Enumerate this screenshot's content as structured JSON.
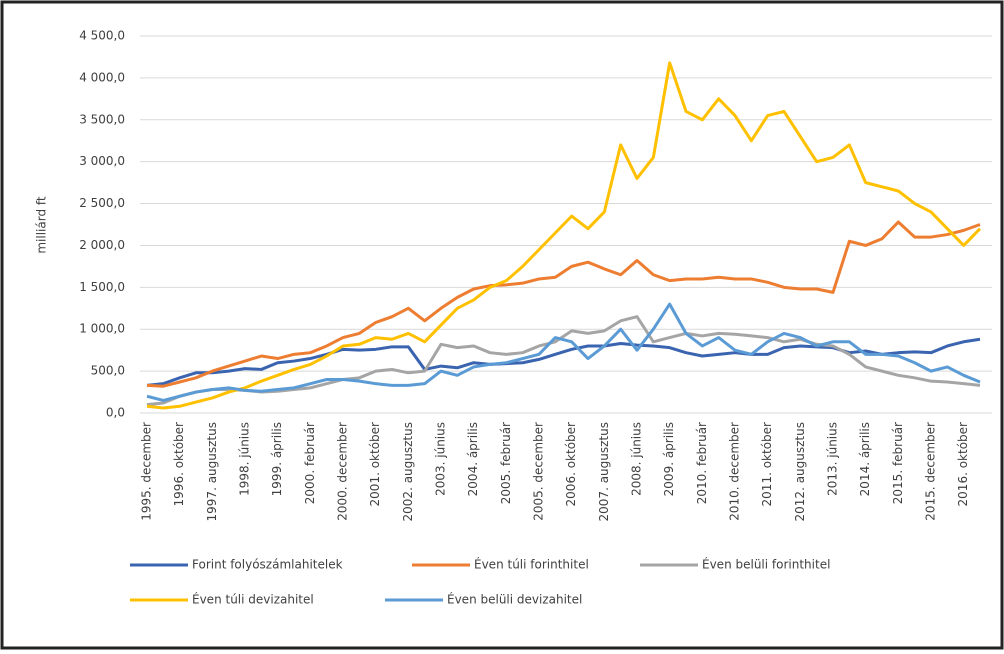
{
  "chart_data": {
    "type": "line",
    "y_label": "milliárd ft",
    "categories": [
      "1995. december",
      null,
      "1996. október",
      null,
      "1997. augusztus",
      null,
      "1998. június",
      null,
      "1999. április",
      null,
      "2000. február",
      null,
      "2000. december",
      null,
      "2001. október",
      null,
      "2002. augusztus",
      null,
      "2003. június",
      null,
      "2004. április",
      null,
      "2005. február",
      null,
      "2005. december",
      null,
      "2006. október",
      null,
      "2007. augusztus",
      null,
      "2008. június",
      null,
      "2009. április",
      null,
      "2010. február",
      null,
      "2010. december",
      null,
      "2011. október",
      null,
      "2012. augusztus",
      null,
      "2013. június",
      null,
      "2014. április",
      null,
      "2015. február",
      null,
      "2015. december",
      null,
      "2016. október",
      null
    ],
    "series": [
      {
        "name": "Forint folyószámlahitelek",
        "color": "#3a64b0",
        "values": [
          330,
          350,
          420,
          480,
          480,
          500,
          530,
          520,
          600,
          620,
          650,
          700,
          760,
          750,
          760,
          790,
          790,
          520,
          560,
          540,
          600,
          580,
          590,
          600,
          640,
          700,
          760,
          800,
          800,
          830,
          810,
          800,
          780,
          720,
          680,
          700,
          720,
          700,
          700,
          780,
          800,
          790,
          780,
          720,
          740,
          700,
          720,
          730,
          720,
          800,
          850,
          880
        ]
      },
      {
        "name": "Éven túli forinthitel",
        "color": "#ed7d31",
        "values": [
          330,
          320,
          370,
          420,
          500,
          560,
          620,
          680,
          650,
          700,
          720,
          800,
          900,
          950,
          1080,
          1150,
          1250,
          1100,
          1250,
          1380,
          1480,
          1520,
          1530,
          1550,
          1600,
          1620,
          1750,
          1800,
          1720,
          1650,
          1820,
          1650,
          1580,
          1600,
          1600,
          1620,
          1600,
          1600,
          1560,
          1500,
          1480,
          1480,
          1440,
          2050,
          2000,
          2080,
          2280,
          2100,
          2100,
          2130,
          2180,
          2250
        ]
      },
      {
        "name": "Éven belüli forinthitel",
        "color": "#a5a5a5",
        "values": [
          100,
          120,
          200,
          250,
          280,
          280,
          270,
          250,
          260,
          280,
          300,
          350,
          400,
          420,
          500,
          520,
          480,
          500,
          820,
          780,
          800,
          720,
          700,
          720,
          800,
          850,
          980,
          950,
          980,
          1100,
          1150,
          850,
          900,
          950,
          920,
          950,
          940,
          920,
          900,
          850,
          880,
          820,
          800,
          700,
          550,
          500,
          450,
          420,
          380,
          370,
          350,
          330
        ]
      },
      {
        "name": "Éven túli devizahitel",
        "color": "#ffc000",
        "values": [
          80,
          60,
          80,
          130,
          180,
          250,
          300,
          380,
          450,
          520,
          580,
          680,
          800,
          820,
          900,
          880,
          950,
          850,
          1050,
          1250,
          1350,
          1500,
          1580,
          1750,
          1950,
          2150,
          2350,
          2200,
          2400,
          3200,
          2800,
          3050,
          4180,
          3600,
          3500,
          3750,
          3550,
          3250,
          3550,
          3600,
          3300,
          3000,
          3050,
          3200,
          2750,
          2700,
          2650,
          2500,
          2400,
          2200,
          2000,
          2200
        ]
      },
      {
        "name": "Éven belüli devizahitel",
        "color": "#5b9bd5",
        "values": [
          200,
          150,
          200,
          250,
          280,
          300,
          270,
          260,
          280,
          300,
          350,
          400,
          400,
          380,
          350,
          330,
          330,
          350,
          500,
          450,
          550,
          580,
          600,
          650,
          700,
          900,
          850,
          650,
          800,
          1000,
          750,
          1000,
          1300,
          950,
          800,
          900,
          750,
          700,
          850,
          950,
          900,
          800,
          850,
          850,
          700,
          700,
          680,
          600,
          500,
          550,
          450,
          370
        ]
      }
    ],
    "ylim": [
      0,
      4500
    ],
    "yticks": [
      {
        "value": 0,
        "label": "0,0"
      },
      {
        "value": 500,
        "label": "500,0"
      },
      {
        "value": 1000,
        "label": "1 000,0"
      },
      {
        "value": 1500,
        "label": "1 500,0"
      },
      {
        "value": 2000,
        "label": "2 000,0"
      },
      {
        "value": 2500,
        "label": "2 500,0"
      },
      {
        "value": 3000,
        "label": "3 000,0"
      },
      {
        "value": 3500,
        "label": "3 500,0"
      },
      {
        "value": 4000,
        "label": "4 000,0"
      },
      {
        "value": 4500,
        "label": "4 500,0"
      }
    ],
    "grid": true
  }
}
